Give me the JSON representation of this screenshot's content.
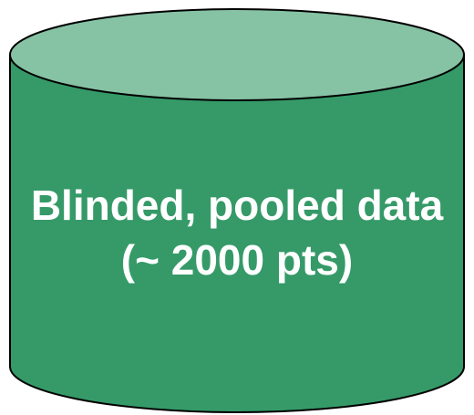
{
  "shape": {
    "type": "cylinder",
    "body_color": "#359a68",
    "top_color": "#86c2a4",
    "outline_color": "#000000"
  },
  "label": {
    "line1": "Blinded, pooled data",
    "line2": "(~ 2000 pts)",
    "color": "#ffffff"
  }
}
